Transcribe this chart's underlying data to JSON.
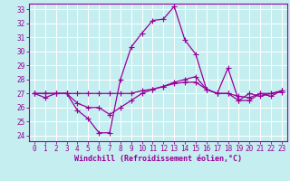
{
  "xlabel": "Windchill (Refroidissement éolien,°C)",
  "bg_color": "#c5eef0",
  "grid_color": "#ffffff",
  "line_color": "#990099",
  "spine_color": "#990099",
  "xlim": [
    -0.5,
    23.5
  ],
  "ylim": [
    23.6,
    33.4
  ],
  "yticks": [
    24,
    25,
    26,
    27,
    28,
    29,
    30,
    31,
    32,
    33
  ],
  "xticks": [
    0,
    1,
    2,
    3,
    4,
    5,
    6,
    7,
    8,
    9,
    10,
    11,
    12,
    13,
    14,
    15,
    16,
    17,
    18,
    19,
    20,
    21,
    22,
    23
  ],
  "series": [
    [
      27.0,
      26.7,
      27.0,
      27.0,
      25.8,
      25.2,
      24.2,
      24.2,
      28.0,
      30.3,
      31.3,
      32.2,
      32.3,
      33.2,
      30.8,
      29.8,
      27.3,
      27.0,
      28.8,
      26.5,
      27.0,
      26.8,
      27.0,
      27.2
    ],
    [
      27.0,
      27.0,
      27.0,
      27.0,
      26.3,
      26.0,
      26.0,
      25.5,
      26.0,
      26.5,
      27.0,
      27.3,
      27.5,
      27.8,
      28.0,
      28.2,
      27.3,
      27.0,
      27.0,
      26.5,
      26.5,
      27.0,
      26.8,
      27.2
    ],
    [
      27.0,
      27.0,
      27.0,
      27.0,
      27.0,
      27.0,
      27.0,
      27.0,
      27.0,
      27.0,
      27.2,
      27.3,
      27.5,
      27.7,
      27.8,
      27.8,
      27.3,
      27.0,
      27.0,
      26.8,
      26.7,
      27.0,
      27.0,
      27.1
    ]
  ],
  "tick_fontsize": 5.5,
  "xlabel_fontsize": 6.0,
  "marker": "+",
  "markersize": 4.0,
  "linewidth": 0.9
}
